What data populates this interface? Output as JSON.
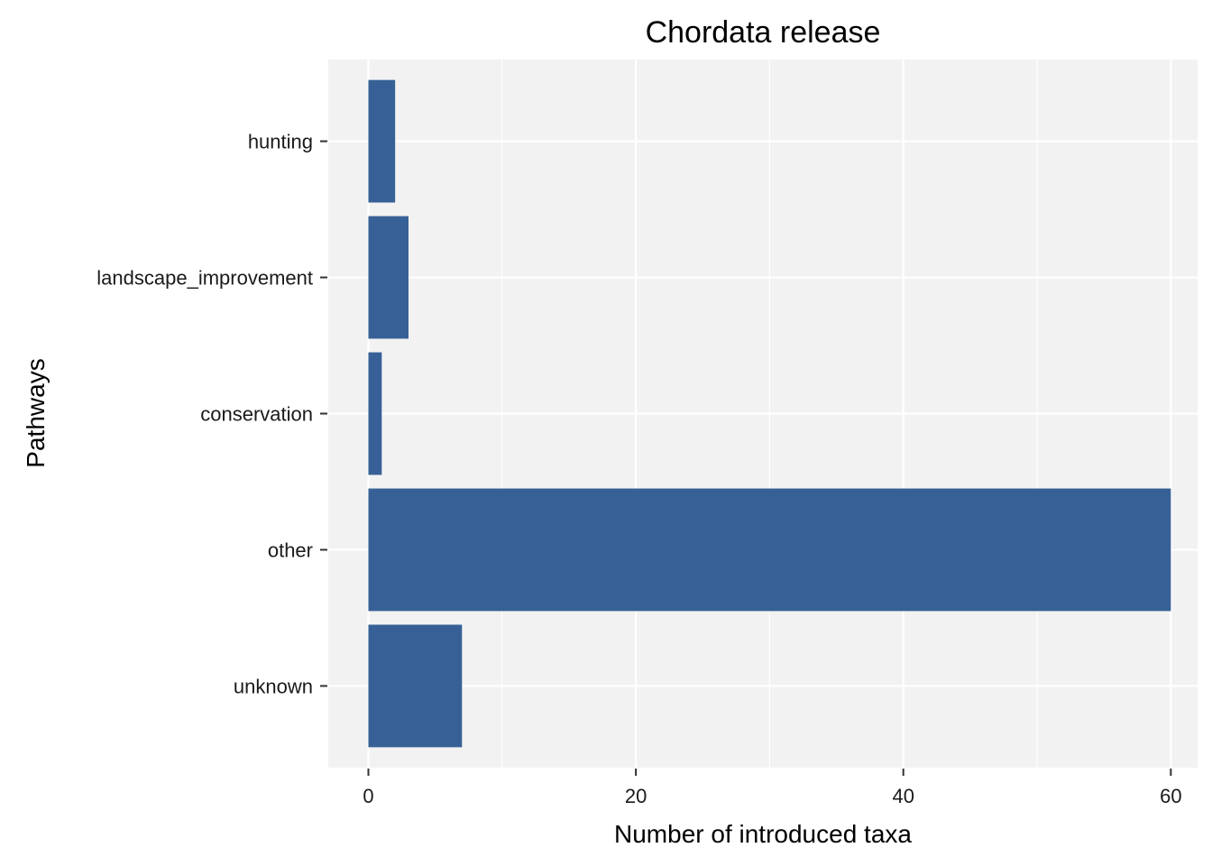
{
  "chart_data": {
    "type": "bar",
    "orientation": "horizontal",
    "title": "Chordata release",
    "xlabel": "Number of introduced taxa",
    "ylabel": "Pathways",
    "categories": [
      "hunting",
      "landscape_improvement",
      "conservation",
      "other",
      "unknown"
    ],
    "values": [
      2,
      3,
      1,
      60,
      7
    ],
    "xlim": [
      -3,
      62
    ],
    "xticks": [
      0,
      20,
      40,
      60
    ],
    "grid": true,
    "bar_color": "#376196",
    "panel_background": "#f2f2f2"
  }
}
